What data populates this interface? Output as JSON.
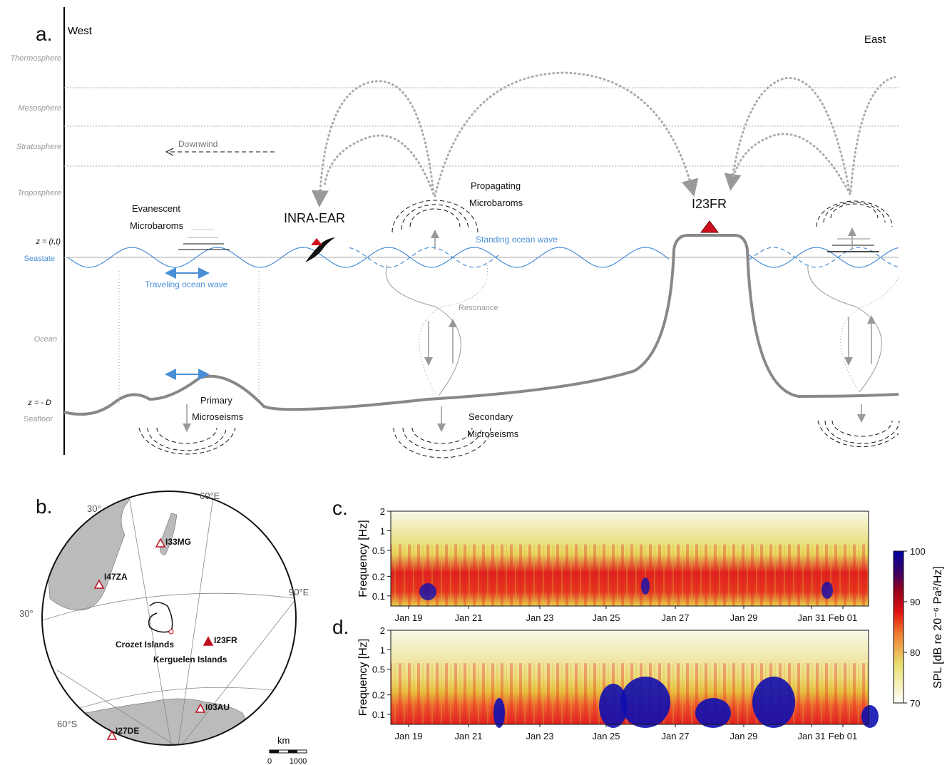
{
  "panel_a": {
    "label": "a.",
    "west": "West",
    "east": "East",
    "layers": [
      "Thermosphere",
      "Mesosphere",
      "Stratosphere",
      "Troposphere"
    ],
    "surface": "z = (r,t)",
    "seastate": "Seastate",
    "ocean": "Ocean",
    "depth": "z = - D",
    "seafloor": "Seafloor",
    "downwind": "Downwind",
    "evanescent": [
      "Evanescent",
      "Microbaroms"
    ],
    "sensor": "INRA-EAR",
    "propagating": [
      "Propagating",
      "Microbaroms"
    ],
    "station": "I23FR",
    "standing_wave": "Standing ocean wave",
    "traveling_wave": "Traveling ocean wave",
    "resonance": "Resonance",
    "primary": [
      "Primary",
      "Microseisms"
    ],
    "secondary": [
      "Secondary",
      "Microseisms"
    ]
  },
  "panel_b": {
    "label": "b.",
    "graticule": [
      "30°",
      "60°E",
      "90°E",
      "30°",
      "60°S"
    ],
    "stations": [
      {
        "name": "I33MG",
        "filled": false
      },
      {
        "name": "I47ZA",
        "filled": false
      },
      {
        "name": "I23FR",
        "filled": true
      },
      {
        "name": "I03AU",
        "filled": false
      },
      {
        "name": "I27DE",
        "filled": false
      }
    ],
    "islands": [
      "Crozet Islands",
      "Kerguelen Islands"
    ],
    "scale": {
      "unit": "km",
      "ticks": [
        "0",
        "1000"
      ]
    }
  },
  "spectrograms": [
    {
      "label": "c.",
      "ylabel": "Frequency [Hz]",
      "log": true,
      "ylim": [
        0.07,
        2
      ],
      "yticks": [
        2,
        1,
        0.5,
        0.2,
        0.1
      ],
      "dates": [
        "Jan 19",
        "Jan 21",
        "Jan 23",
        "Jan 25",
        "Jan 27",
        "Jan 29",
        "Jan 31",
        "Feb 01"
      ]
    },
    {
      "label": "d.",
      "ylabel": "Frequency [Hz]",
      "log": true,
      "ylim": [
        0.07,
        2
      ],
      "yticks": [
        2,
        1,
        0.5,
        0.2,
        0.1
      ],
      "dates": [
        "Jan 19",
        "Jan 21",
        "Jan 23",
        "Jan 25",
        "Jan 27",
        "Jan 29",
        "Jan 31",
        "Feb 01"
      ]
    }
  ],
  "colorbar": {
    "label": "SPL [dB re 20⁻⁶ Pa²/Hz]",
    "lim": [
      70,
      100
    ],
    "ticks": [
      100,
      90,
      80,
      70
    ]
  }
}
